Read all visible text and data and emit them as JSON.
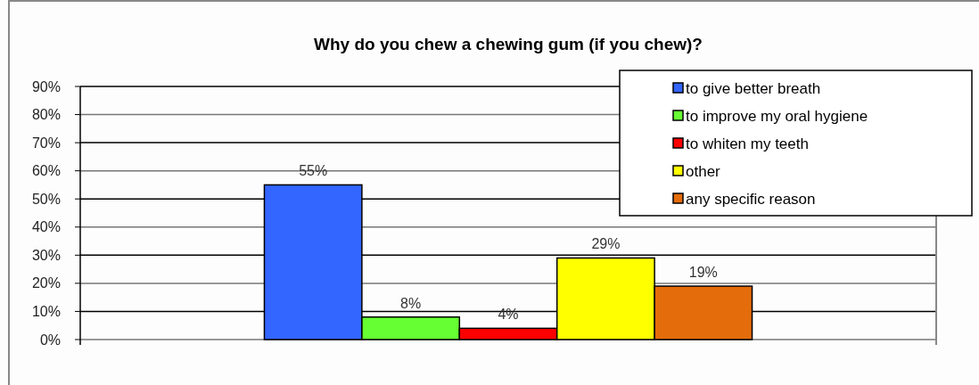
{
  "chart_data": {
    "type": "bar",
    "title": "Why do you chew a chewing gum (if you chew)?",
    "categories": [
      null
    ],
    "series": [
      {
        "name": "to give better breath",
        "color": "#3366ff",
        "values": [
          55
        ],
        "value_labels": [
          "55%"
        ]
      },
      {
        "name": "to improve my oral hygiene",
        "color": "#66ff33",
        "values": [
          8
        ],
        "value_labels": [
          "8%"
        ]
      },
      {
        "name": "to whiten my teeth",
        "color": "#ff0000",
        "values": [
          4
        ],
        "value_labels": [
          "4%"
        ]
      },
      {
        "name": "other",
        "color": "#ffff00",
        "values": [
          29
        ],
        "value_labels": [
          "29%"
        ]
      },
      {
        "name": "any specific reason",
        "color": "#e46c0a",
        "values": [
          19
        ],
        "value_labels": [
          "19%"
        ]
      }
    ],
    "ylim": [
      0,
      90
    ],
    "yticks": [
      {
        "value": 0,
        "label": "0%"
      },
      {
        "value": 10,
        "label": "10%"
      },
      {
        "value": 20,
        "label": "20%"
      },
      {
        "value": 30,
        "label": "30%"
      },
      {
        "value": 40,
        "label": "40%"
      },
      {
        "value": 50,
        "label": "50%"
      },
      {
        "value": 60,
        "label": "60%"
      },
      {
        "value": 70,
        "label": "70%"
      },
      {
        "value": 80,
        "label": "80%"
      },
      {
        "value": 90,
        "label": "90%"
      }
    ],
    "grid": "y",
    "legend": "top right"
  }
}
